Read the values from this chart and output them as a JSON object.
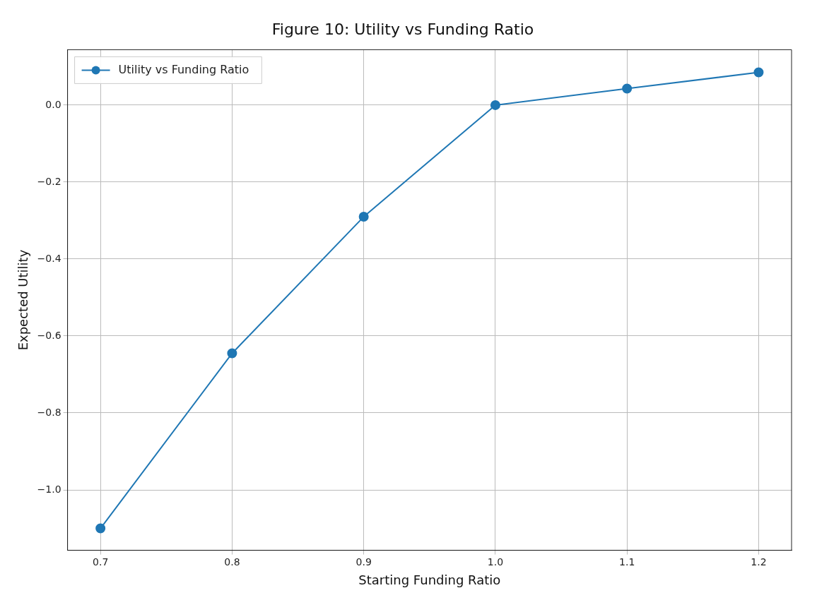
{
  "chart_data": {
    "type": "line",
    "title": "Figure 10: Utility vs Funding Ratio",
    "xlabel": "Starting Funding Ratio",
    "ylabel": "Expected Utility",
    "x": [
      0.7,
      0.8,
      0.9,
      1.0,
      1.1,
      1.2
    ],
    "series": [
      {
        "name": "Utility vs Funding Ratio",
        "color": "#1f77b4",
        "values": [
          -1.1,
          -0.645,
          -0.29,
          0.0,
          0.043,
          0.085
        ]
      }
    ],
    "xlim": [
      0.675,
      1.225
    ],
    "ylim": [
      -1.157,
      0.144
    ],
    "xticks": [
      0.7,
      0.8,
      0.9,
      {
        "value": 1.0,
        "label": "1.0"
      },
      1.1,
      1.2
    ],
    "yticks": [
      {
        "value": -1.0,
        "label": "−1.0"
      },
      {
        "value": -0.8,
        "label": "−0.8"
      },
      {
        "value": -0.6,
        "label": "−0.6"
      },
      {
        "value": -0.4,
        "label": "−0.4"
      },
      {
        "value": -0.2,
        "label": "−0.2"
      },
      {
        "value": 0.0,
        "label": "0.0"
      }
    ],
    "grid": true,
    "legend": "top left",
    "marker": "circle",
    "line_style": "solid"
  }
}
